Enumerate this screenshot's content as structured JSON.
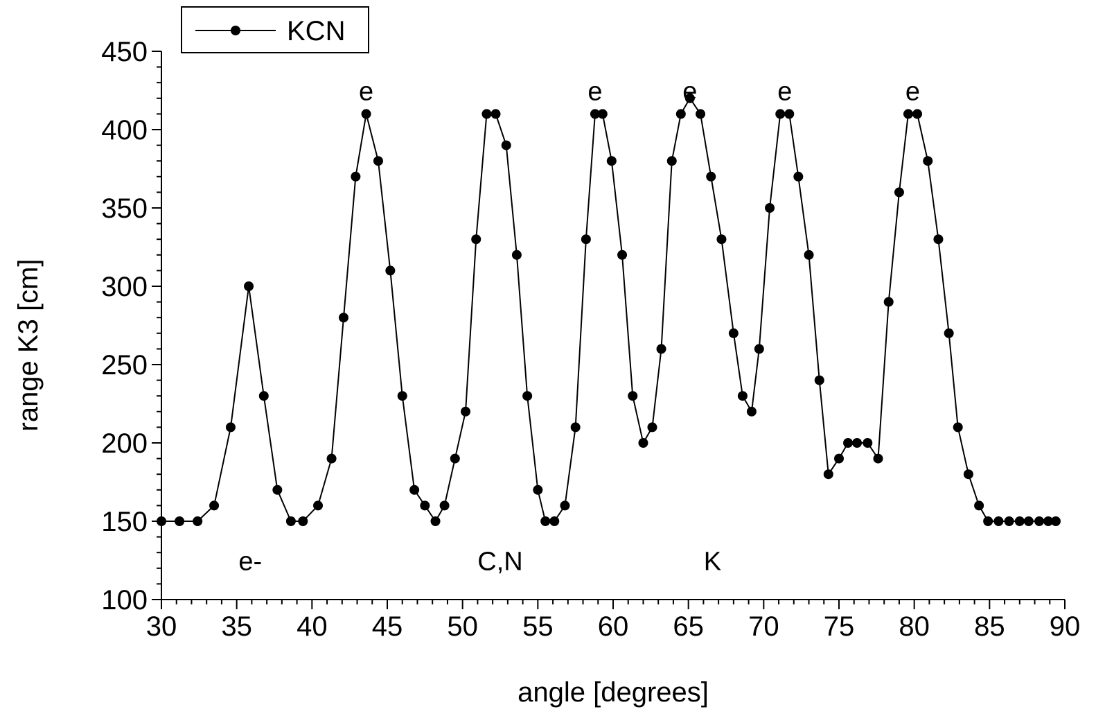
{
  "chart_data": {
    "type": "line",
    "title": "",
    "xlabel": "angle [degrees]",
    "ylabel": "range K3 [cm]",
    "xlim": [
      30,
      90
    ],
    "ylim": [
      100,
      450
    ],
    "x_ticks": [
      30,
      35,
      40,
      45,
      50,
      55,
      60,
      65,
      70,
      75,
      80,
      85,
      90
    ],
    "y_ticks": [
      100,
      150,
      200,
      250,
      300,
      350,
      400,
      450
    ],
    "x_tick_labels": [
      "30",
      "35",
      "40",
      "45",
      "50",
      "55",
      "60",
      "65",
      "70",
      "75",
      "80",
      "85",
      "90"
    ],
    "y_tick_labels": [
      "100",
      "150",
      "200",
      "250",
      "300",
      "350",
      "400",
      "450"
    ],
    "grid": false,
    "legend": {
      "position": "top-left",
      "entries": [
        "KCN"
      ]
    },
    "series": [
      {
        "name": "KCN",
        "color": "#000000",
        "marker": "filled-circle",
        "x": [
          30,
          31.2,
          32.4,
          33.5,
          34.6,
          35.8,
          36.8,
          37.7,
          38.6,
          39.4,
          40.4,
          41.3,
          42.1,
          42.9,
          43.6,
          44.4,
          45.2,
          46,
          46.8,
          47.5,
          48.2,
          48.8,
          49.5,
          50.2,
          50.9,
          51.6,
          52.2,
          52.9,
          53.6,
          54.3,
          55,
          55.5,
          56.1,
          56.8,
          57.5,
          58.2,
          58.8,
          59.3,
          59.9,
          60.6,
          61.3,
          62,
          62.6,
          63.2,
          63.9,
          64.5,
          65.1,
          65.8,
          66.5,
          67.2,
          68,
          68.6,
          69.2,
          69.7,
          70.4,
          71.1,
          71.7,
          72.3,
          73,
          73.7,
          74.3,
          75,
          75.6,
          76.2,
          76.9,
          77.6,
          78.3,
          79,
          79.6,
          80.2,
          80.9,
          81.6,
          82.3,
          82.9,
          83.6,
          84.3,
          84.9,
          85.6,
          86.3,
          87,
          87.6,
          88.3,
          88.9,
          89.4
        ],
        "y": [
          150,
          150,
          150,
          160,
          210,
          300,
          230,
          170,
          150,
          150,
          160,
          190,
          280,
          370,
          410,
          380,
          310,
          230,
          170,
          160,
          150,
          160,
          190,
          220,
          330,
          410,
          410,
          390,
          320,
          230,
          170,
          150,
          150,
          160,
          210,
          330,
          410,
          410,
          380,
          320,
          230,
          200,
          210,
          260,
          380,
          410,
          420,
          410,
          370,
          330,
          270,
          230,
          220,
          260,
          350,
          410,
          410,
          370,
          320,
          240,
          180,
          190,
          200,
          200,
          200,
          190,
          290,
          360,
          410,
          410,
          380,
          330,
          270,
          210,
          180,
          160,
          150,
          150,
          150,
          150,
          150,
          150,
          150,
          150
        ]
      }
    ],
    "annotations": [
      {
        "text": "e",
        "x": 43.6,
        "y": 425
      },
      {
        "text": "e",
        "x": 58.8,
        "y": 425
      },
      {
        "text": "e",
        "x": 65.1,
        "y": 425
      },
      {
        "text": "e",
        "x": 71.4,
        "y": 425
      },
      {
        "text": "e",
        "x": 79.9,
        "y": 425
      },
      {
        "text": "e-",
        "x": 35.9,
        "y": 125
      },
      {
        "text": "C,N",
        "x": 52.5,
        "y": 125
      },
      {
        "text": "K",
        "x": 66.6,
        "y": 125
      }
    ]
  }
}
